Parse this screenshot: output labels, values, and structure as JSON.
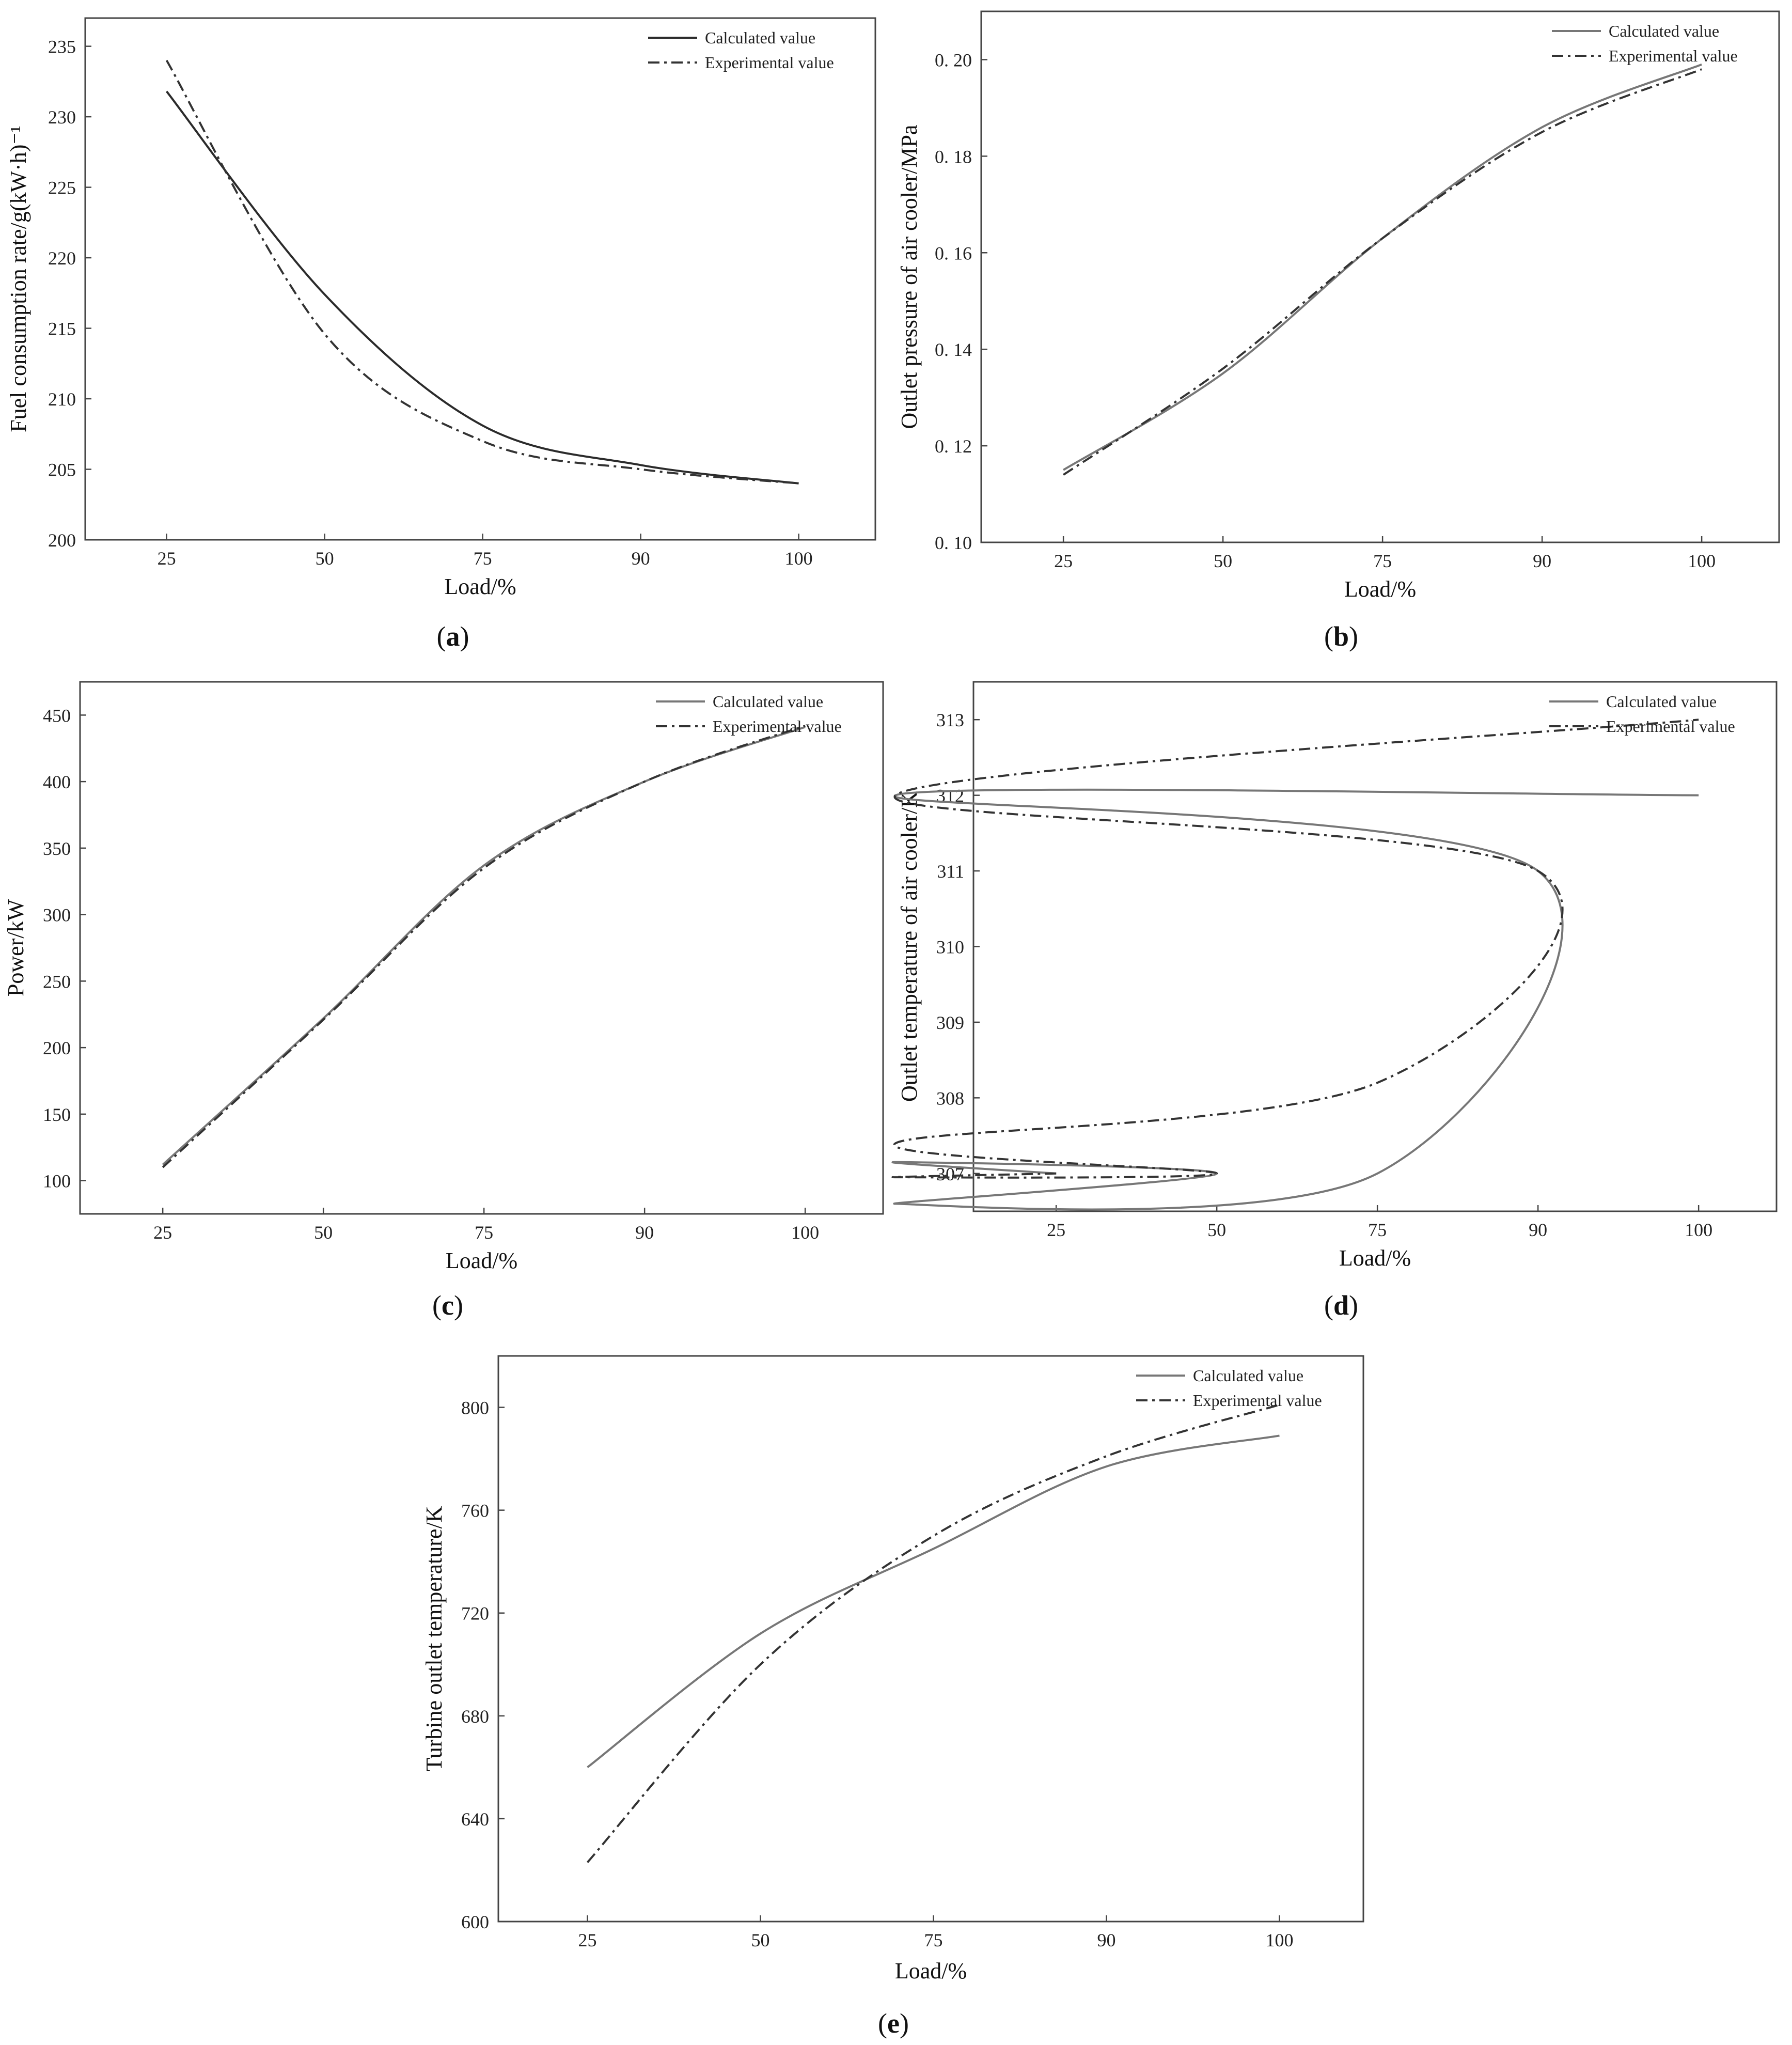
{
  "figure": {
    "panels": [
      {
        "id": "a",
        "caption_letter": "a"
      },
      {
        "id": "b",
        "caption_letter": "b"
      },
      {
        "id": "c",
        "caption_letter": "c"
      },
      {
        "id": "d",
        "caption_letter": "d"
      },
      {
        "id": "e",
        "caption_letter": "e"
      }
    ]
  },
  "chart_data": [
    {
      "panel": "a",
      "type": "line",
      "xlabel": "Load/%",
      "ylabel": "Fuel consumption rate/g(kW·h)⁻¹",
      "x_categories": [
        "25",
        "50",
        "75",
        "90",
        "100"
      ],
      "ylim": [
        200,
        237
      ],
      "yticks": [
        200,
        205,
        210,
        215,
        220,
        225,
        230,
        235
      ],
      "legend_position": "top-right",
      "grid": false,
      "series": [
        {
          "name": "Calculated value",
          "style": "solid",
          "color": "#2b2b2b",
          "values": [
            231.8,
            217.4,
            208.1,
            205.3,
            204.0
          ]
        },
        {
          "name": "Experimental value",
          "style": "dashdot",
          "color": "#333333",
          "values": [
            234.0,
            214.6,
            207.0,
            205.0,
            204.0
          ]
        }
      ]
    },
    {
      "panel": "b",
      "type": "line",
      "xlabel": "Load/%",
      "ylabel": "Outlet pressure of air cooler/MPa",
      "x_categories": [
        "25",
        "50",
        "75",
        "90",
        "100"
      ],
      "ylim": [
        0.1,
        0.21
      ],
      "yticks": [
        0.1,
        0.12,
        0.14,
        0.16,
        0.18,
        0.2
      ],
      "ytick_labels": [
        "0. 10",
        "0. 12",
        "0. 14",
        "0. 16",
        "0. 18",
        "0. 20"
      ],
      "legend_position": "top-right",
      "grid": false,
      "series": [
        {
          "name": "Calculated value",
          "style": "solid",
          "color": "#777777",
          "values": [
            0.115,
            0.135,
            0.163,
            0.186,
            0.199
          ]
        },
        {
          "name": "Experimental value",
          "style": "dashdot",
          "color": "#333333",
          "values": [
            0.114,
            0.136,
            0.163,
            0.185,
            0.198
          ]
        }
      ]
    },
    {
      "panel": "c",
      "type": "line",
      "xlabel": "Load/%",
      "ylabel": "Power/kW",
      "x_categories": [
        "25",
        "50",
        "75",
        "90",
        "100"
      ],
      "ylim": [
        75,
        475
      ],
      "yticks": [
        100,
        150,
        200,
        250,
        300,
        350,
        400,
        450
      ],
      "legend_position": "top-right",
      "grid": false,
      "series": [
        {
          "name": "Calculated value",
          "style": "solid",
          "color": "#777777",
          "values": [
            112,
            222,
            337,
            400,
            441
          ]
        },
        {
          "name": "Experimental value",
          "style": "dashdot",
          "color": "#333333",
          "values": [
            110,
            221,
            335,
            400,
            442
          ]
        }
      ]
    },
    {
      "panel": "d",
      "type": "line",
      "xlabel": "Load/%",
      "ylabel": "Outlet temperature of air cooler/K",
      "x_categories": [
        "25",
        "50",
        "75",
        "90",
        "100"
      ],
      "ylim": [
        306.5,
        313.5
      ],
      "yticks": [
        307,
        308,
        309,
        310,
        311,
        312,
        313
      ],
      "legend_position": "top-right",
      "grid": false,
      "series": [
        {
          "name": "Calculated value",
          "style": "solid",
          "color": "#777777",
          "x": [
            "25",
            "40",
            "50",
            "65",
            "75",
            "90",
            "95",
            "100"
          ],
          "values": [
            307.0,
            307.15,
            307.0,
            306.6,
            307.0,
            311.0,
            312.0,
            312.0
          ]
        },
        {
          "name": "Experimental value",
          "style": "dashdot",
          "color": "#333333",
          "x": [
            "25",
            "40",
            "50",
            "65",
            "75",
            "90",
            "95",
            "100"
          ],
          "values": [
            307.0,
            306.95,
            307.0,
            307.4,
            308.2,
            311.0,
            312.0,
            313.0
          ]
        }
      ]
    },
    {
      "panel": "e",
      "type": "line",
      "xlabel": "Load/%",
      "ylabel": "Turbine outlet temperature/K",
      "x_categories": [
        "25",
        "50",
        "75",
        "90",
        "100"
      ],
      "ylim": [
        600,
        820
      ],
      "yticks": [
        600,
        640,
        680,
        720,
        760,
        800
      ],
      "legend_position": "top-right",
      "grid": false,
      "series": [
        {
          "name": "Calculated value",
          "style": "solid",
          "color": "#777777",
          "values": [
            660,
            712,
            745,
            777,
            789
          ]
        },
        {
          "name": "Experimental value",
          "style": "dashdot",
          "color": "#333333",
          "values": [
            623,
            700,
            750,
            781,
            801
          ]
        }
      ]
    }
  ]
}
